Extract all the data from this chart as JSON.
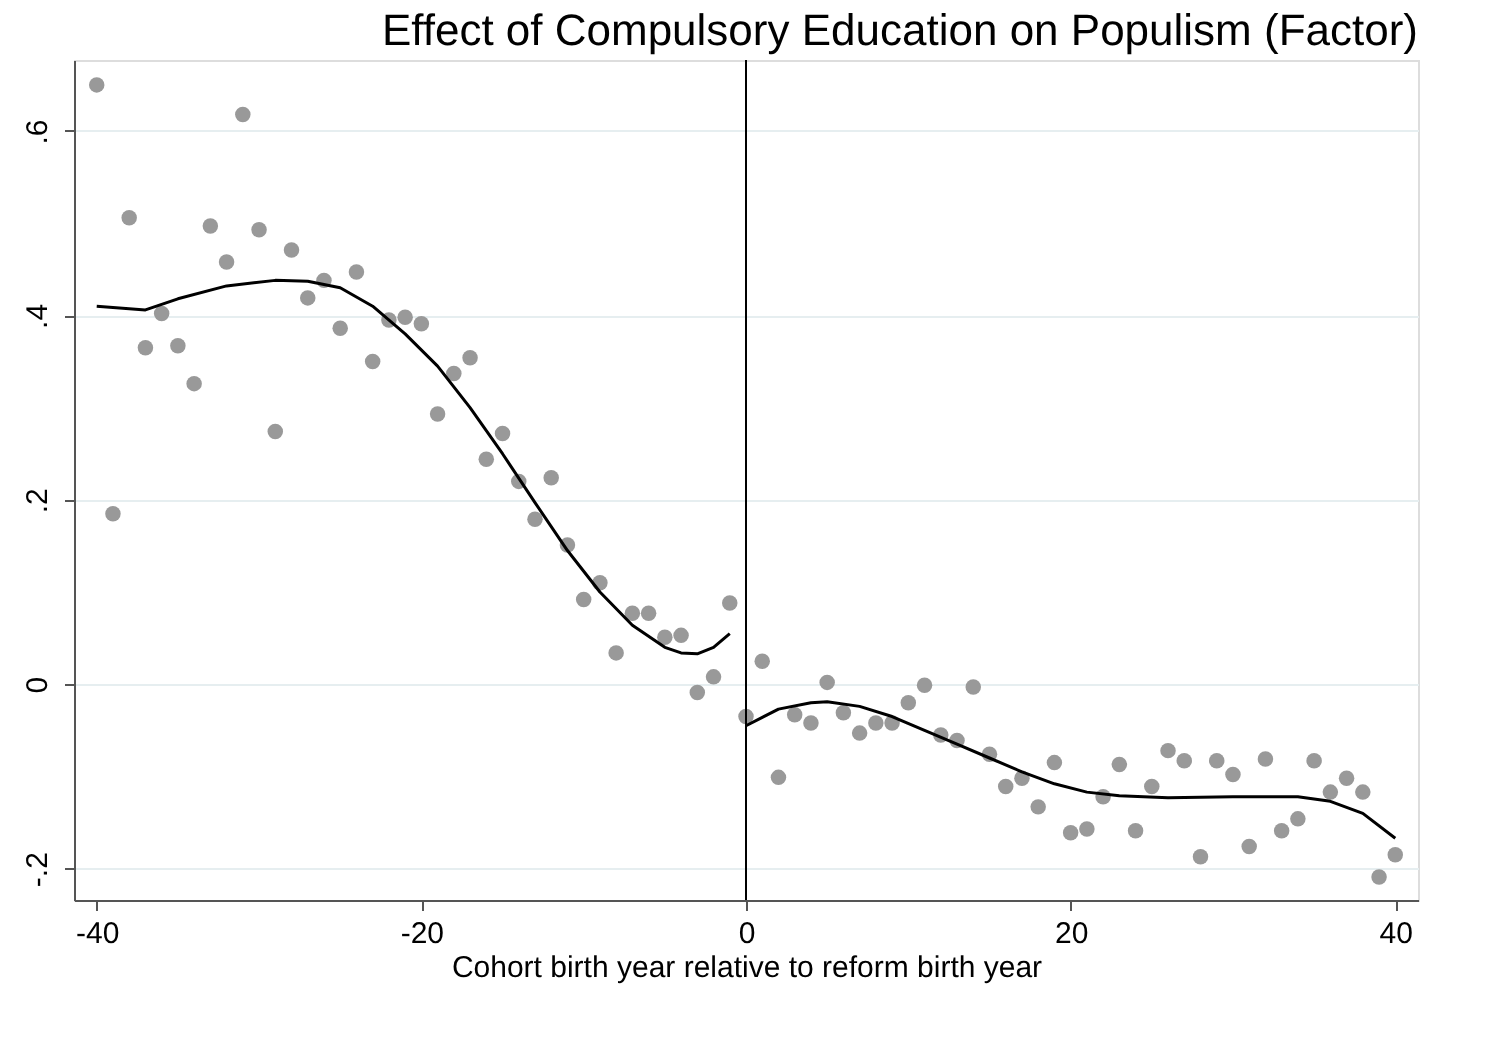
{
  "chart_data": {
    "type": "scatter",
    "title": "Effect of Compulsory Education on Populism (Factor)",
    "xlabel": "Cohort birth year relative to reform birth year",
    "xlim": [
      -41.4,
      41.4
    ],
    "xticks": [
      -40,
      -20,
      0,
      20,
      40
    ],
    "ylim": [
      -0.234,
      0.677
    ],
    "yticks": [
      {
        "value": -0.2,
        "label": "-.2"
      },
      {
        "value": 0,
        "label": "0"
      },
      {
        "value": 0.2,
        "label": ".2"
      },
      {
        "value": 0.4,
        "label": ".4"
      },
      {
        "value": 0.6,
        "label": ".6"
      }
    ],
    "grid": "y",
    "ref_lines": [
      {
        "axis": "x",
        "value": 0,
        "color": "#000000"
      }
    ],
    "series": [
      {
        "type": "scatter",
        "marker": "circle",
        "color": "#999999",
        "x": [
          -40,
          -39,
          -38,
          -37,
          -36,
          -35,
          -34,
          -33,
          -32,
          -31,
          -30,
          -29,
          -28,
          -27,
          -26,
          -25,
          -24,
          -23,
          -22,
          -21,
          -20,
          -19,
          -18,
          -17,
          -16,
          -15,
          -14,
          -13,
          -12,
          -11,
          -10,
          -9,
          -8,
          -7,
          -6,
          -5,
          -4,
          -3,
          -2,
          -1,
          0,
          1,
          2,
          3,
          4,
          5,
          6,
          7,
          8,
          9,
          10,
          11,
          12,
          13,
          14,
          15,
          16,
          17,
          18,
          19,
          20,
          21,
          22,
          23,
          24,
          25,
          26,
          27,
          28,
          29,
          30,
          31,
          32,
          33,
          34,
          35,
          36,
          37,
          38,
          39,
          40
        ],
        "values": [
          0.65,
          0.185,
          0.506,
          0.365,
          0.402,
          0.367,
          0.326,
          0.497,
          0.458,
          0.618,
          0.493,
          0.274,
          0.471,
          0.419,
          0.438,
          0.386,
          0.447,
          0.35,
          0.395,
          0.398,
          0.391,
          0.293,
          0.337,
          0.354,
          0.244,
          0.272,
          0.22,
          0.179,
          0.224,
          0.151,
          0.092,
          0.11,
          0.034,
          0.077,
          0.077,
          0.051,
          0.053,
          -0.009,
          0.008,
          0.088,
          -0.035,
          0.025,
          -0.101,
          -0.033,
          -0.042,
          0.002,
          -0.031,
          -0.053,
          -0.042,
          -0.042,
          -0.02,
          -0.001,
          -0.055,
          -0.061,
          -0.003,
          -0.076,
          -0.111,
          -0.102,
          -0.133,
          -0.085,
          -0.161,
          -0.157,
          -0.122,
          -0.087,
          -0.159,
          -0.111,
          -0.072,
          -0.083,
          -0.187,
          -0.083,
          -0.098,
          -0.176,
          -0.081,
          -0.159,
          -0.146,
          -0.083,
          -0.117,
          -0.102,
          -0.117,
          -0.209,
          -0.185
        ]
      },
      {
        "type": "line",
        "color": "#000000",
        "line_style": "solid",
        "x": [
          -40,
          -37,
          -35,
          -32,
          -29,
          -27,
          -25,
          -23,
          -21,
          -19,
          -17,
          -15,
          -13,
          -11,
          -9,
          -7,
          -5,
          -4,
          -3,
          -2,
          -1
        ],
        "values": [
          0.41,
          0.406,
          0.418,
          0.432,
          0.438,
          0.437,
          0.43,
          0.41,
          0.38,
          0.345,
          0.3,
          0.25,
          0.197,
          0.145,
          0.1,
          0.064,
          0.04,
          0.034,
          0.033,
          0.04,
          0.055
        ]
      },
      {
        "type": "line",
        "color": "#000000",
        "line_style": "solid",
        "x": [
          0,
          2,
          4,
          5,
          7,
          9,
          11,
          13,
          15,
          17,
          19,
          21,
          23,
          26,
          30,
          34,
          36,
          38,
          40
        ],
        "values": [
          -0.045,
          -0.027,
          -0.02,
          -0.019,
          -0.024,
          -0.035,
          -0.05,
          -0.065,
          -0.08,
          -0.095,
          -0.108,
          -0.117,
          -0.121,
          -0.123,
          -0.122,
          -0.122,
          -0.127,
          -0.14,
          -0.167
        ]
      }
    ]
  }
}
